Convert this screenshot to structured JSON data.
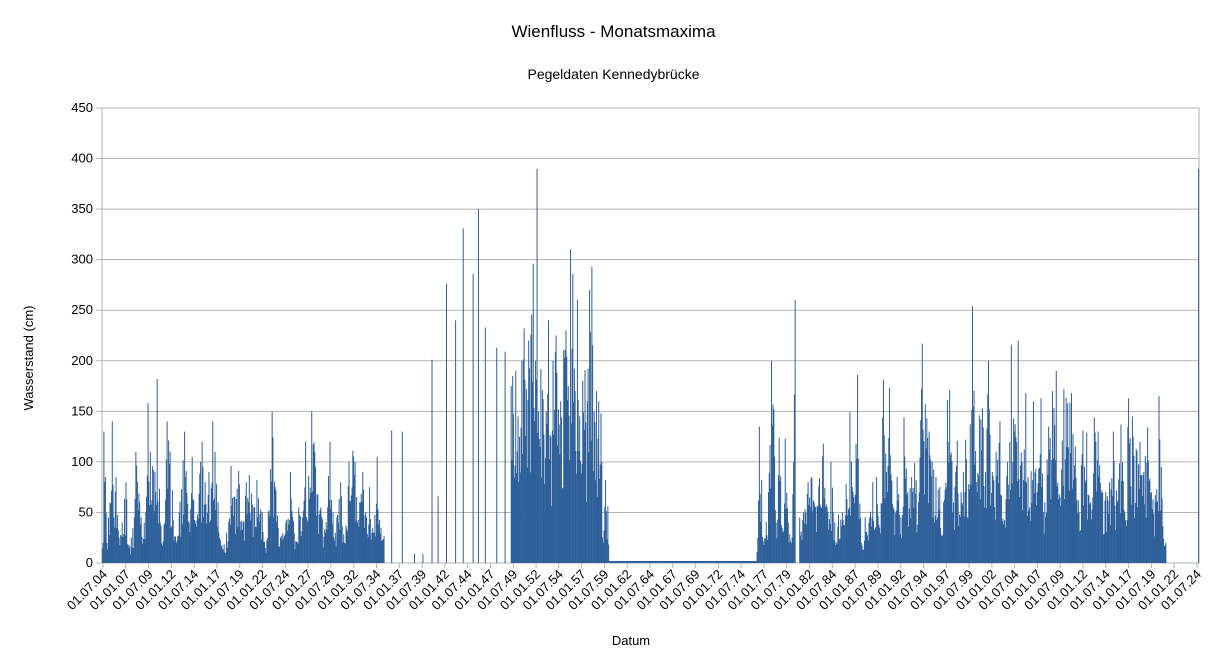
{
  "chart_data": {
    "type": "bar",
    "title": "Wienfluss - Monatsmaxima",
    "subtitle": "Pegeldaten Kennedybrücke",
    "xlabel": "Datum",
    "ylabel": "Wasserstand (cm)",
    "ylim": [
      0,
      450
    ],
    "yticks": [
      0,
      50,
      100,
      150,
      200,
      250,
      300,
      350,
      400,
      450
    ],
    "grid": true,
    "legend": "none",
    "color": "#2e5f99",
    "tick_labels": [
      "01.07.04",
      "01.01.07",
      "01.07.09",
      "01.01.12",
      "01.07.14",
      "01.01.17",
      "01.07.19",
      "01.01.22",
      "01.07.24",
      "01.01.27",
      "01.07.29",
      "01.01.32",
      "01.07.34",
      "01.01.37",
      "01.07.39",
      "01.01.42",
      "01.07.44",
      "01.01.47",
      "01.07.49",
      "01.01.52",
      "01.07.54",
      "01.01.57",
      "01.07.59",
      "01.01.62",
      "01.07.64",
      "01.01.67",
      "01.07.69",
      "01.01.72",
      "01.07.74",
      "01.01.77",
      "01.07.79",
      "01.01.82",
      "01.07.84",
      "01.01.87",
      "01.07.89",
      "01.01.92",
      "01.07.94",
      "01.01.97",
      "01.07.99",
      "01.01.02",
      "01.07.04",
      "01.01.07",
      "01.07.09",
      "01.01.12",
      "01.07.14",
      "01.01.17",
      "01.07.19",
      "01.01.22",
      "01.07.24"
    ],
    "start": "1904-07",
    "end": "2024-07",
    "keyframes": [
      [
        "1904-07",
        14
      ],
      [
        "1904-08",
        20
      ],
      [
        "1904-09",
        130
      ],
      [
        "1904-10",
        80
      ],
      [
        "1904-11",
        85
      ],
      [
        "1905-01",
        20
      ],
      [
        "1905-03",
        45
      ],
      [
        "1905-05",
        60
      ],
      [
        "1905-08",
        140
      ],
      [
        "1905-10",
        45
      ],
      [
        "1906-01",
        85
      ],
      [
        "1906-05",
        25
      ],
      [
        "1906-09",
        40
      ],
      [
        "1907-02",
        80
      ],
      [
        "1907-06",
        15
      ],
      [
        "1908-01",
        45
      ],
      [
        "1908-03",
        110
      ],
      [
        "1908-08",
        60
      ],
      [
        "1909-02",
        40
      ],
      [
        "1909-07",
        158
      ],
      [
        "1909-10",
        110
      ],
      [
        "1910-04",
        90
      ],
      [
        "1910-07",
        182
      ],
      [
        "1910-11",
        40
      ],
      [
        "1911-04",
        38
      ],
      [
        "1911-08",
        140
      ],
      [
        "1911-12",
        110
      ],
      [
        "1912-03",
        72
      ],
      [
        "1912-08",
        20
      ],
      [
        "1912-12",
        50
      ],
      [
        "1913-07",
        130
      ],
      [
        "1914-01",
        40
      ],
      [
        "1914-05",
        105
      ],
      [
        "1914-10",
        42
      ],
      [
        "1915-04",
        100
      ],
      [
        "1915-06",
        120
      ],
      [
        "1915-10",
        80
      ],
      [
        "1916-03",
        90
      ],
      [
        "1916-08",
        140
      ],
      [
        "1916-11",
        110
      ],
      [
        "1917-03",
        60
      ],
      [
        "1917-08",
        18
      ],
      [
        "1918-02",
        30
      ],
      [
        "1918-08",
        96
      ],
      [
        "1919-01",
        65
      ],
      [
        "1919-06",
        91
      ],
      [
        "1919-12",
        40
      ],
      [
        "1920-04",
        80
      ],
      [
        "1920-08",
        87
      ],
      [
        "1921-02",
        55
      ],
      [
        "1921-06",
        82
      ],
      [
        "1922-01",
        50
      ],
      [
        "1922-05",
        15
      ],
      [
        "1922-09",
        50
      ],
      [
        "1923-02",
        150
      ],
      [
        "1923-07",
        72
      ],
      [
        "1924-01",
        25
      ],
      [
        "1924-08",
        40
      ],
      [
        "1925-02",
        90
      ],
      [
        "1925-07",
        30
      ],
      [
        "1926-01",
        55
      ],
      [
        "1926-06",
        45
      ],
      [
        "1926-10",
        120
      ],
      [
        "1927-02",
        86
      ],
      [
        "1927-06",
        150
      ],
      [
        "1927-10",
        110
      ],
      [
        "1928-02",
        68
      ],
      [
        "1928-06",
        55
      ],
      [
        "1928-12",
        30
      ],
      [
        "1929-06",
        120
      ],
      [
        "1929-10",
        50
      ],
      [
        "1930-03",
        45
      ],
      [
        "1930-08",
        80
      ],
      [
        "1931-01",
        20
      ],
      [
        "1931-07",
        100
      ],
      [
        "1931-12",
        111
      ],
      [
        "1932-03",
        100
      ],
      [
        "1932-09",
        60
      ],
      [
        "1933-01",
        90
      ],
      [
        "1933-06",
        45
      ],
      [
        "1933-10",
        75
      ],
      [
        "1934-03",
        30
      ],
      [
        "1934-08",
        105
      ],
      [
        "1935-01",
        35
      ],
      [
        "1935-05",
        27
      ],
      [
        "1935-11",
        0
      ],
      [
        "1936-03",
        131
      ],
      [
        "1936-06",
        0
      ],
      [
        "1937-05",
        130
      ],
      [
        "1937-08",
        0
      ],
      [
        "1938-09",
        9
      ],
      [
        "1938-11",
        0
      ],
      [
        "1939-08",
        9
      ],
      [
        "1939-10",
        0
      ],
      [
        "1940-08",
        201
      ],
      [
        "1940-11",
        0
      ],
      [
        "1941-04",
        66
      ],
      [
        "1941-07",
        0
      ],
      [
        "1942-03",
        276
      ],
      [
        "1942-06",
        0
      ],
      [
        "1943-03",
        240
      ],
      [
        "1943-06",
        0
      ],
      [
        "1944-01",
        331
      ],
      [
        "1944-04",
        0
      ],
      [
        "1945-02",
        286
      ],
      [
        "1945-05",
        0
      ],
      [
        "1945-09",
        350
      ],
      [
        "1945-12",
        0
      ],
      [
        "1946-06",
        233
      ],
      [
        "1946-09",
        0
      ],
      [
        "1947-09",
        213
      ],
      [
        "1947-12",
        0
      ],
      [
        "1948-08",
        209
      ],
      [
        "1948-11",
        0
      ],
      [
        "1949-04",
        175
      ],
      [
        "1949-06",
        185
      ],
      [
        "1949-10",
        190
      ],
      [
        "1950-01",
        145
      ],
      [
        "1950-03",
        125
      ],
      [
        "1950-06",
        200
      ],
      [
        "1950-09",
        232
      ],
      [
        "1950-12",
        172
      ],
      [
        "1951-03",
        220
      ],
      [
        "1951-06",
        226
      ],
      [
        "1951-09",
        296
      ],
      [
        "1951-12",
        200
      ],
      [
        "1952-02",
        390
      ],
      [
        "1952-04",
        150
      ],
      [
        "1952-07",
        192
      ],
      [
        "1952-10",
        162
      ],
      [
        "1953-02",
        150
      ],
      [
        "1953-05",
        240
      ],
      [
        "1953-08",
        125
      ],
      [
        "1953-11",
        200
      ],
      [
        "1954-03",
        225
      ],
      [
        "1954-06",
        152
      ],
      [
        "1954-09",
        160
      ],
      [
        "1955-01",
        211
      ],
      [
        "1955-04",
        230
      ],
      [
        "1955-07",
        175
      ],
      [
        "1955-10",
        310
      ],
      [
        "1956-01",
        286
      ],
      [
        "1956-04",
        170
      ],
      [
        "1956-07",
        260
      ],
      [
        "1956-10",
        145
      ],
      [
        "1957-02",
        180
      ],
      [
        "1957-05",
        191
      ],
      [
        "1957-08",
        160
      ],
      [
        "1957-11",
        270
      ],
      [
        "1958-02",
        293
      ],
      [
        "1958-05",
        150
      ],
      [
        "1958-08",
        170
      ],
      [
        "1958-11",
        160
      ],
      [
        "1959-02",
        148
      ],
      [
        "1959-05",
        20
      ],
      [
        "1959-08",
        82
      ],
      [
        "1959-11",
        56
      ],
      [
        "1960-01",
        2
      ],
      [
        "1976-02",
        2
      ],
      [
        "1976-04",
        25
      ],
      [
        "1976-06",
        135
      ],
      [
        "1976-09",
        82
      ],
      [
        "1977-01",
        25
      ],
      [
        "1977-06",
        70
      ],
      [
        "1977-10",
        200
      ],
      [
        "1978-01",
        152
      ],
      [
        "1978-04",
        40
      ],
      [
        "1978-08",
        124
      ],
      [
        "1979-01",
        30
      ],
      [
        "1979-04",
        123
      ],
      [
        "1979-08",
        40
      ],
      [
        "1980-01",
        25
      ],
      [
        "1980-05",
        260
      ],
      [
        "1980-08",
        0
      ],
      [
        "1980-11",
        45
      ],
      [
        "1981-04",
        50
      ],
      [
        "1981-10",
        80
      ],
      [
        "1982-03",
        85
      ],
      [
        "1982-08",
        55
      ],
      [
        "1983-01",
        84
      ],
      [
        "1983-06",
        118
      ],
      [
        "1983-11",
        55
      ],
      [
        "1984-04",
        100
      ],
      [
        "1984-09",
        40
      ],
      [
        "1985-02",
        48
      ],
      [
        "1985-07",
        50
      ],
      [
        "1985-12",
        78
      ],
      [
        "1986-05",
        149
      ],
      [
        "1986-10",
        65
      ],
      [
        "1987-03",
        186
      ],
      [
        "1987-08",
        20
      ],
      [
        "1988-01",
        45
      ],
      [
        "1988-06",
        40
      ],
      [
        "1988-11",
        80
      ],
      [
        "1989-04",
        85
      ],
      [
        "1989-08",
        35
      ],
      [
        "1990-01",
        181
      ],
      [
        "1990-05",
        90
      ],
      [
        "1990-09",
        173
      ],
      [
        "1991-02",
        55
      ],
      [
        "1991-07",
        85
      ],
      [
        "1991-12",
        45
      ],
      [
        "1992-04",
        144
      ],
      [
        "1992-09",
        70
      ],
      [
        "1993-02",
        85
      ],
      [
        "1993-06",
        99
      ],
      [
        "1993-11",
        60
      ],
      [
        "1994-04",
        217
      ],
      [
        "1994-08",
        157
      ],
      [
        "1995-01",
        130
      ],
      [
        "1995-05",
        100
      ],
      [
        "1995-10",
        85
      ],
      [
        "1996-03",
        75
      ],
      [
        "1996-08",
        60
      ],
      [
        "1997-01",
        161
      ],
      [
        "1997-04",
        171
      ],
      [
        "1997-09",
        60
      ],
      [
        "1998-02",
        121
      ],
      [
        "1998-07",
        70
      ],
      [
        "1999-01",
        122
      ],
      [
        "1999-05",
        78
      ],
      [
        "1999-10",
        254
      ],
      [
        "2000-03",
        80
      ],
      [
        "2000-07",
        146
      ],
      [
        "2000-11",
        153
      ],
      [
        "2001-03",
        90
      ],
      [
        "2001-07",
        200
      ],
      [
        "2001-12",
        90
      ],
      [
        "2002-05",
        110
      ],
      [
        "2002-10",
        140
      ],
      [
        "2003-03",
        38
      ],
      [
        "2003-08",
        100
      ],
      [
        "2004-01",
        216
      ],
      [
        "2004-05",
        130
      ],
      [
        "2004-10",
        220
      ],
      [
        "2005-03",
        100
      ],
      [
        "2005-08",
        168
      ],
      [
        "2006-01",
        55
      ],
      [
        "2006-06",
        160
      ],
      [
        "2006-11",
        70
      ],
      [
        "2007-04",
        163
      ],
      [
        "2007-09",
        60
      ],
      [
        "2008-02",
        135
      ],
      [
        "2008-07",
        170
      ],
      [
        "2008-12",
        190
      ],
      [
        "2009-05",
        65
      ],
      [
        "2009-10",
        172
      ],
      [
        "2010-03",
        158
      ],
      [
        "2010-08",
        168
      ],
      [
        "2011-01",
        115
      ],
      [
        "2011-06",
        50
      ],
      [
        "2011-11",
        131
      ],
      [
        "2012-04",
        129
      ],
      [
        "2012-09",
        60
      ],
      [
        "2013-02",
        144
      ],
      [
        "2013-07",
        130
      ],
      [
        "2013-12",
        72
      ],
      [
        "2014-05",
        70
      ],
      [
        "2014-10",
        80
      ],
      [
        "2015-03",
        130
      ],
      [
        "2015-08",
        60
      ],
      [
        "2016-01",
        137
      ],
      [
        "2016-06",
        50
      ],
      [
        "2016-11",
        163
      ],
      [
        "2017-04",
        145
      ],
      [
        "2017-09",
        113
      ],
      [
        "2018-02",
        120
      ],
      [
        "2018-07",
        90
      ],
      [
        "2018-12",
        134
      ],
      [
        "2019-05",
        70
      ],
      [
        "2019-10",
        67
      ],
      [
        "2020-03",
        165
      ],
      [
        "2020-06",
        95
      ],
      [
        "2020-09",
        24
      ],
      [
        "2020-12",
        20
      ],
      [
        "2021-01",
        0
      ],
      [
        "2024-05",
        0
      ],
      [
        "2024-07",
        390
      ]
    ]
  }
}
